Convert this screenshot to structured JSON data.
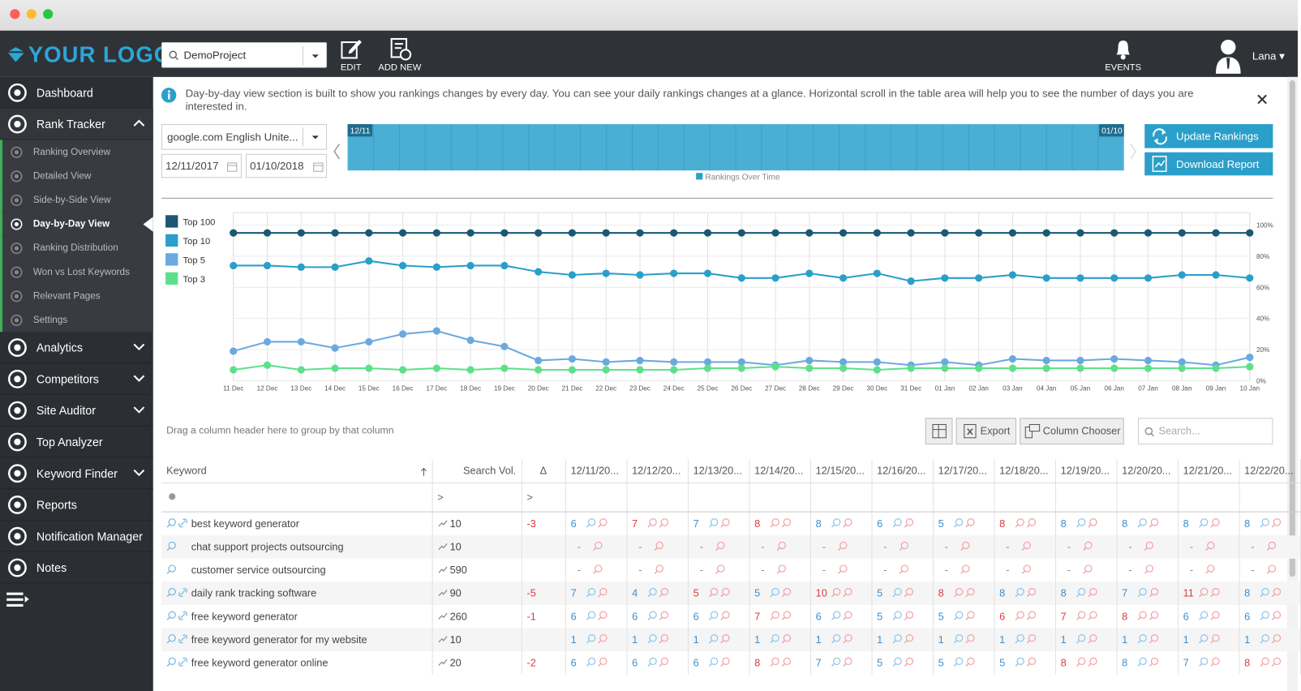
{
  "header": {
    "logo": "YOUR LOGO",
    "project": "DemoProject",
    "edit": "EDIT",
    "add_new": "ADD NEW",
    "events": "EVENTS",
    "user": "Lana"
  },
  "sidebar": {
    "top": [
      {
        "label": "Dashboard",
        "expandable": false
      },
      {
        "label": "Rank Tracker",
        "expandable": true
      }
    ],
    "submenu": [
      "Ranking Overview",
      "Detailed View",
      "Side-by-Side View",
      "Day-by-Day View",
      "Ranking Distribution",
      "Won vs Lost Keywords",
      "Relevant Pages",
      "Settings"
    ],
    "active_index": 3,
    "bottom": [
      {
        "label": "Analytics",
        "expandable": true
      },
      {
        "label": "Competitors",
        "expandable": true
      },
      {
        "label": "Site Auditor",
        "expandable": true
      },
      {
        "label": "Top Analyzer",
        "expandable": false
      },
      {
        "label": "Keyword Finder",
        "expandable": true
      },
      {
        "label": "Reports",
        "expandable": false
      },
      {
        "label": "Notification Manager",
        "expandable": false
      },
      {
        "label": "Notes",
        "expandable": false
      }
    ]
  },
  "info": {
    "text": "Day-by-day view section is built to show you rankings changes by every day. You can see your daily rankings changes at a glance. Horizontal scroll in the table area will help you to see the number of days you are interested in."
  },
  "controls": {
    "engine": "google.com English Unite...",
    "start_date": "12/11/2017",
    "end_date": "01/10/2018",
    "range_start": "12/11",
    "range_end": "01/10",
    "range_legend": "Rankings Over Time",
    "update": "Update Rankings",
    "download": "Download Report"
  },
  "grid": {
    "group_hint": "Drag a column header here to group by that column",
    "export": "Export",
    "column_chooser": "Column Chooser",
    "search": "Search...",
    "filter_op": ">"
  },
  "table": {
    "columns": [
      "Keyword",
      "Search Vol.",
      "Δ",
      "12/11/20...",
      "12/12/20...",
      "12/13/20...",
      "12/14/20...",
      "12/15/20...",
      "12/16/20...",
      "12/17/20...",
      "12/18/20...",
      "12/19/20...",
      "12/20/20...",
      "12/21/20...",
      "12/22/20..."
    ],
    "rows": [
      {
        "keyword": "best keyword generator",
        "url_icon": true,
        "volume": 10,
        "delta": -3,
        "ranks": [
          6,
          7,
          7,
          8,
          8,
          6,
          5,
          8,
          8,
          8,
          8,
          8
        ]
      },
      {
        "keyword": "chat support projects outsourcing",
        "url_icon": false,
        "volume": 10,
        "delta": null,
        "ranks": [
          "-",
          "-",
          "-",
          "-",
          "-",
          "-",
          "-",
          "-",
          "-",
          "-",
          "-",
          "-"
        ]
      },
      {
        "keyword": "customer service outsourcing",
        "url_icon": false,
        "volume": 590,
        "delta": null,
        "ranks": [
          "-",
          "-",
          "-",
          "-",
          "-",
          "-",
          "-",
          "-",
          "-",
          "-",
          "-",
          "-"
        ]
      },
      {
        "keyword": "daily rank tracking software",
        "url_icon": true,
        "volume": 90,
        "delta": -5,
        "ranks": [
          7,
          4,
          5,
          5,
          10,
          5,
          8,
          8,
          8,
          7,
          11,
          8
        ]
      },
      {
        "keyword": "free keyword generator",
        "url_icon": true,
        "volume": 260,
        "delta": -1,
        "ranks": [
          6,
          6,
          6,
          7,
          6,
          5,
          5,
          6,
          7,
          8,
          6,
          6
        ]
      },
      {
        "keyword": "free keyword generator for my website",
        "url_icon": true,
        "volume": 10,
        "delta": null,
        "ranks": [
          1,
          1,
          1,
          1,
          1,
          1,
          1,
          1,
          1,
          1,
          1,
          1
        ]
      },
      {
        "keyword": "free keyword generator online",
        "url_icon": true,
        "volume": 20,
        "delta": -2,
        "ranks": [
          6,
          6,
          6,
          8,
          7,
          5,
          5,
          5,
          8,
          8,
          7,
          8
        ]
      }
    ]
  },
  "chart_data": {
    "type": "line",
    "categories": [
      "11 Dec",
      "12 Dec",
      "13 Dec",
      "14 Dec",
      "15 Dec",
      "16 Dec",
      "17 Dec",
      "18 Dec",
      "19 Dec",
      "20 Dec",
      "21 Dec",
      "22 Dec",
      "23 Dec",
      "24 Dec",
      "25 Dec",
      "26 Dec",
      "27 Dec",
      "28 Dec",
      "29 Dec",
      "30 Dec",
      "31 Dec",
      "01 Jan",
      "02 Jan",
      "03 Jan",
      "04 Jan",
      "05 Jan",
      "06 Jan",
      "07 Jan",
      "08 Jan",
      "09 Jan",
      "10 Jan"
    ],
    "series": [
      {
        "name": "Top 100",
        "color": "#1b5873",
        "values": [
          95,
          95,
          95,
          95,
          95,
          95,
          95,
          95,
          95,
          95,
          95,
          95,
          95,
          95,
          95,
          95,
          95,
          95,
          95,
          95,
          95,
          95,
          95,
          95,
          95,
          95,
          95,
          95,
          95,
          95,
          95
        ]
      },
      {
        "name": "Top 10",
        "color": "#2a9fc9",
        "values": [
          74,
          74,
          73,
          73,
          77,
          74,
          73,
          74,
          74,
          70,
          68,
          69,
          68,
          69,
          69,
          66,
          66,
          69,
          66,
          69,
          64,
          66,
          66,
          68,
          66,
          66,
          66,
          66,
          68,
          68,
          66
        ]
      },
      {
        "name": "Top 5",
        "color": "#6aa9e0",
        "values": [
          19,
          25,
          25,
          21,
          25,
          30,
          32,
          26,
          22,
          13,
          14,
          12,
          13,
          12,
          12,
          12,
          10,
          13,
          12,
          12,
          10,
          12,
          10,
          14,
          13,
          13,
          14,
          13,
          12,
          10,
          15
        ]
      },
      {
        "name": "Top 3",
        "color": "#5ee08a",
        "values": [
          7,
          10,
          7,
          8,
          8,
          7,
          8,
          7,
          8,
          7,
          7,
          7,
          7,
          7,
          8,
          8,
          9,
          8,
          8,
          7,
          8,
          8,
          8,
          8,
          8,
          8,
          8,
          8,
          8,
          8,
          9
        ]
      }
    ],
    "ylim": [
      0,
      108
    ],
    "yticks": [
      {
        "value": 0,
        "label": "0%"
      },
      {
        "value": 20,
        "label": "20%"
      },
      {
        "value": 40,
        "label": "40%"
      },
      {
        "value": 60,
        "label": "60%"
      },
      {
        "value": 80,
        "label": "80%"
      },
      {
        "value": 100,
        "label": "100%"
      }
    ],
    "grid": true,
    "legend": "left"
  }
}
